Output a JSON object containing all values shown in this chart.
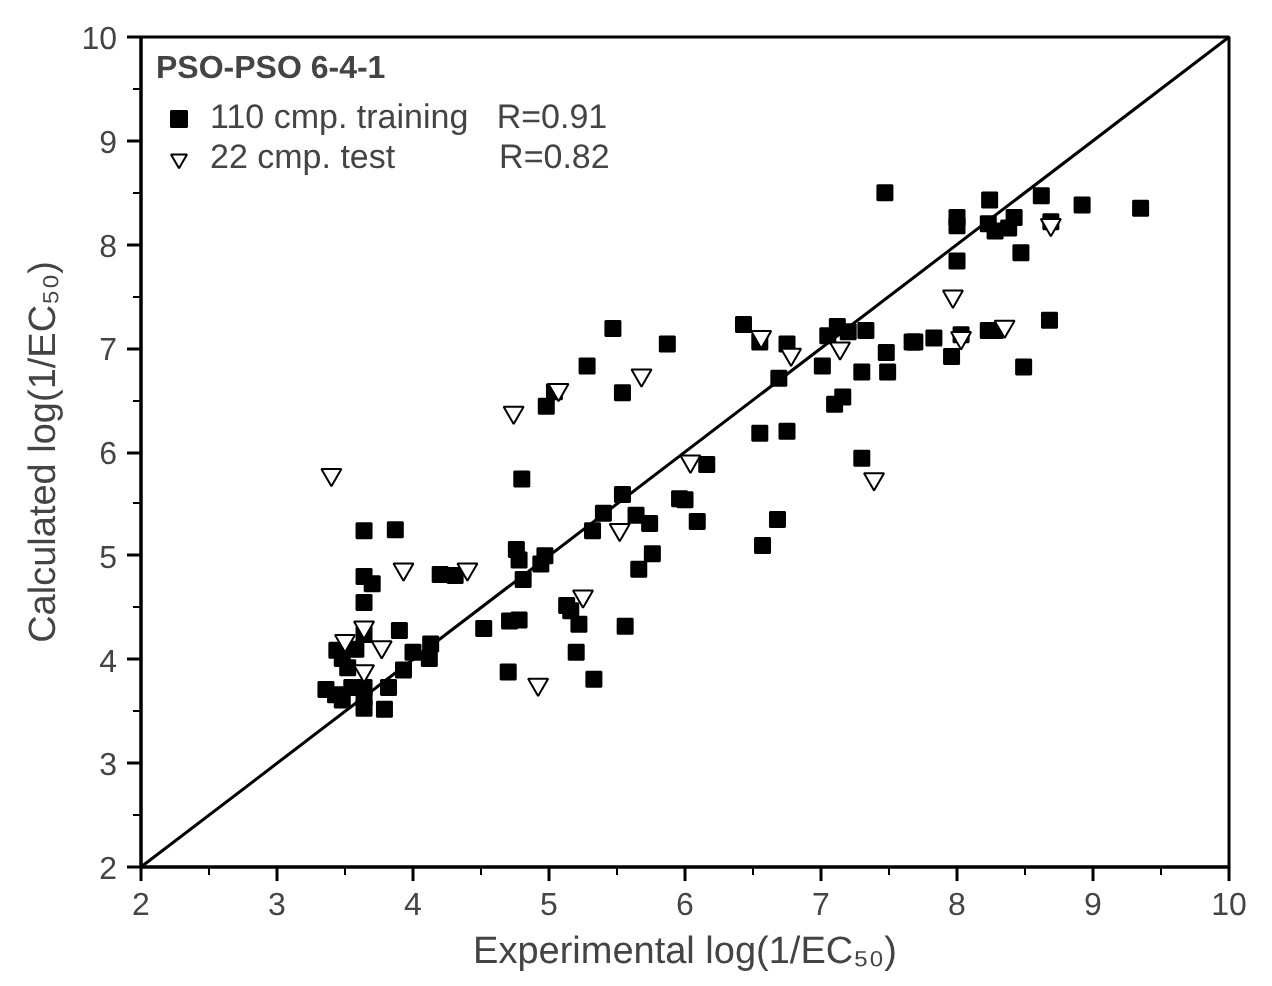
{
  "chart_data": {
    "type": "scatter",
    "xlabel": "Experimental log(1/EC₅₀)",
    "ylabel": "Calculated log(1/EC₅₀)",
    "legend_title": "PSO-PSO 6-4-1",
    "legend": "top left",
    "grid": false,
    "xlim": [
      2,
      10
    ],
    "ylim": [
      2,
      10
    ],
    "xticks": [
      2,
      {
        "value": 2.5,
        "label": null
      },
      3,
      {
        "value": 3.5,
        "label": null
      },
      4,
      {
        "value": 4.5,
        "label": null
      },
      5,
      {
        "value": 5.5,
        "label": null
      },
      6,
      {
        "value": 6.5,
        "label": null
      },
      7,
      {
        "value": 7.5,
        "label": null
      },
      8,
      {
        "value": 8.5,
        "label": null
      },
      9,
      {
        "value": 9.5,
        "label": null
      },
      10
    ],
    "yticks": [
      2,
      {
        "value": 2.5,
        "label": null
      },
      3,
      {
        "value": 3.5,
        "label": null
      },
      4,
      {
        "value": 4.5,
        "label": null
      },
      5,
      {
        "value": 5.5,
        "label": null
      },
      6,
      {
        "value": 6.5,
        "label": null
      },
      7,
      {
        "value": 7.5,
        "label": null
      },
      8,
      {
        "value": 8.5,
        "label": null
      },
      9,
      {
        "value": 9.5,
        "label": null
      },
      10
    ],
    "series": [
      {
        "name": "110 cmp. training   R=0.91",
        "marker": "square",
        "color": "#000000",
        "x": [
          4.98,
          4.8,
          3.64,
          3.87,
          5.4,
          5.32,
          4.76,
          4.78,
          4.97,
          4.94,
          4.81,
          4.2,
          4.31,
          3.64,
          3.7,
          3.64,
          5.13,
          5.16,
          5.22,
          4.71,
          4.78,
          4.52,
          3.9,
          3.44,
          3.48,
          3.58,
          3.64,
          3.52,
          4.0,
          4.13,
          4.12,
          3.93,
          5.2,
          4.7,
          5.33,
          3.36,
          3.43,
          3.48,
          3.55,
          3.64,
          3.64,
          3.64,
          3.82,
          3.79,
          5.28,
          5.54,
          6.69,
          7.01,
          7.1,
          7.16,
          6.55,
          6.75,
          6.16,
          5.54,
          5.96,
          6.0,
          5.64,
          5.74,
          6.09,
          6.68,
          6.57,
          5.76,
          5.66,
          5.56,
          5.47,
          5.87,
          5.04,
          6.43,
          6.55,
          6.75,
          7.05,
          7.12,
          7.2,
          7.33,
          7.48,
          7.3,
          7.49,
          7.67,
          7.3,
          7.47,
          8.24,
          8.62,
          8.92,
          9.35,
          8.0,
          8.0,
          8.23,
          8.28,
          8.38,
          8.42,
          8.47,
          8.0,
          7.69,
          7.83,
          8.03,
          8.23,
          8.28,
          8.68,
          7.96,
          8.49,
          8.69
        ],
        "values": [
          6.44,
          5.74,
          5.24,
          5.25,
          5.41,
          5.24,
          5.06,
          4.96,
          5.0,
          4.92,
          4.77,
          4.82,
          4.81,
          4.8,
          4.73,
          4.55,
          4.52,
          4.47,
          4.34,
          4.37,
          4.38,
          4.3,
          4.28,
          4.09,
          4.01,
          4.1,
          4.24,
          3.92,
          4.07,
          4.15,
          4.01,
          3.9,
          4.07,
          3.88,
          3.81,
          3.71,
          3.66,
          3.61,
          3.73,
          3.73,
          3.63,
          3.53,
          3.73,
          3.52,
          6.83,
          6.57,
          6.71,
          6.83,
          6.46,
          6.53,
          6.18,
          6.2,
          5.88,
          5.59,
          5.55,
          5.54,
          5.39,
          5.31,
          5.33,
          5.35,
          5.1,
          5.02,
          4.87,
          4.32,
          7.19,
          7.04,
          6.58,
          7.23,
          7.06,
          7.04,
          7.12,
          7.21,
          7.16,
          7.17,
          6.96,
          6.77,
          6.77,
          7.06,
          5.94,
          8.5,
          8.43,
          8.47,
          8.38,
          8.35,
          8.26,
          8.18,
          8.2,
          8.13,
          8.16,
          8.26,
          7.92,
          7.84,
          7.06,
          7.1,
          7.13,
          7.17,
          7.17,
          7.27,
          6.92,
          6.82,
          8.22
        ]
      },
      {
        "name": "22 cmp. test           R=0.82",
        "marker": "triangle",
        "color": "#000000",
        "x": [
          3.4,
          4.74,
          3.93,
          4.4,
          5.25,
          3.5,
          3.64,
          3.77,
          3.64,
          4.92,
          5.68,
          6.04,
          5.52,
          6.56,
          6.78,
          7.14,
          5.07,
          7.39,
          8.69,
          7.97,
          8.35,
          8.03
        ],
        "values": [
          5.78,
          6.38,
          4.87,
          4.87,
          4.61,
          4.18,
          4.31,
          4.12,
          3.89,
          3.76,
          6.74,
          5.91,
          5.25,
          7.11,
          6.94,
          7.0,
          6.6,
          5.74,
          8.19,
          7.5,
          7.21,
          7.1
        ]
      },
      {
        "type": "line",
        "color": "#000000",
        "x": [
          2,
          10
        ],
        "values": [
          2,
          10
        ]
      }
    ]
  }
}
